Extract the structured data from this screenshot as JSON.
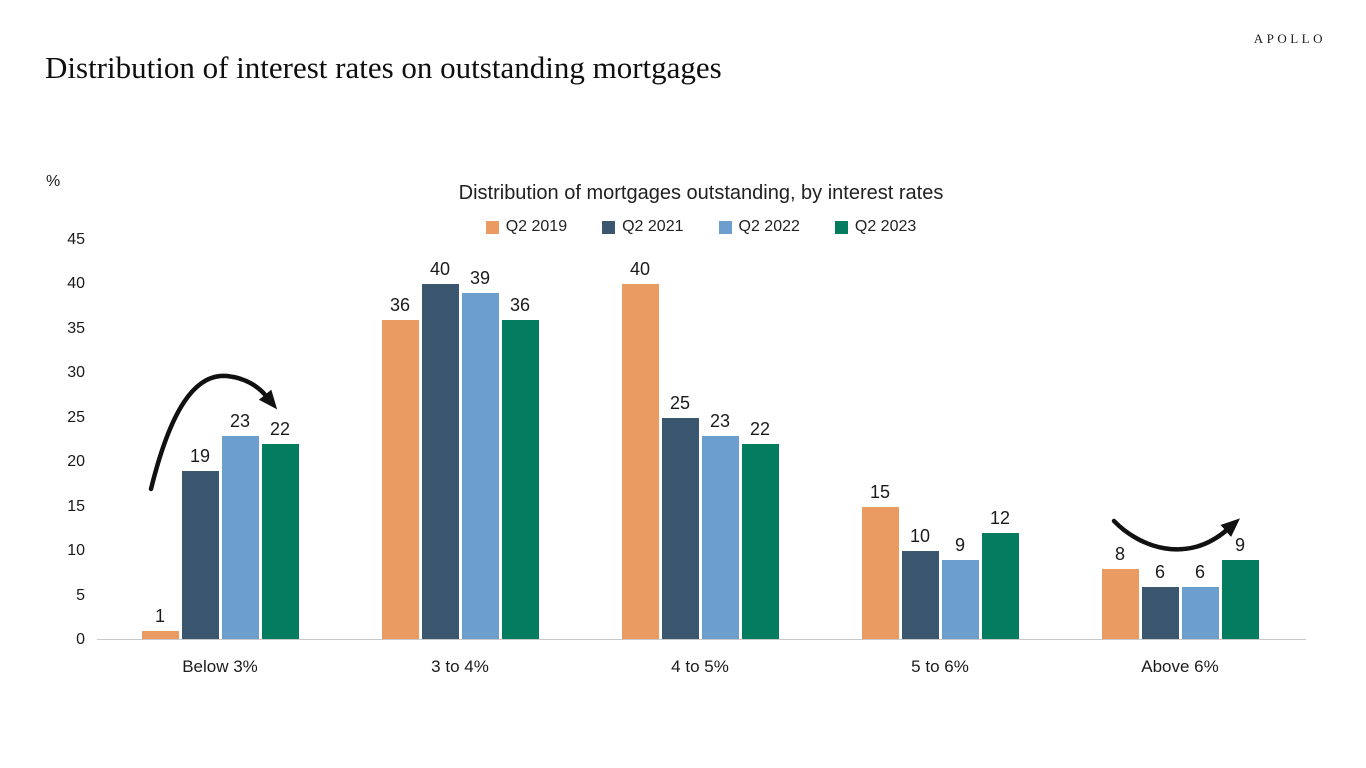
{
  "brand": {
    "logo": "APOLLO"
  },
  "page_title": "Distribution of interest rates on outstanding mortgages",
  "chart_data": {
    "type": "bar",
    "title": "Distribution of mortgages outstanding, by interest rates",
    "ylabel": "%",
    "ylim": [
      0,
      45
    ],
    "yticks": [
      0,
      5,
      10,
      15,
      20,
      25,
      30,
      35,
      40,
      45
    ],
    "grid": false,
    "legend_position": "top-center",
    "categories": [
      "Below 3%",
      "3 to 4%",
      "4 to 5%",
      "5 to 6%",
      "Above 6%"
    ],
    "series": [
      {
        "name": "Q2 2019",
        "color": "#EA9B61",
        "values": [
          1,
          36,
          40,
          15,
          8
        ]
      },
      {
        "name": "Q2 2021",
        "color": "#3B566F",
        "values": [
          19,
          40,
          25,
          10,
          6
        ]
      },
      {
        "name": "Q2 2022",
        "color": "#6D9FCE",
        "values": [
          23,
          39,
          23,
          9,
          6
        ]
      },
      {
        "name": "Q2 2023",
        "color": "#047C60",
        "values": [
          22,
          36,
          22,
          12,
          9
        ]
      }
    ],
    "annotations": [
      {
        "name": "rise-arrow-below-3pct",
        "description": "black arrow arcing up over the Below 3% group pointing down-right",
        "color": "#111111"
      },
      {
        "name": "rebound-arrow-above-6pct",
        "description": "black arrow dipping then curving up over the Above 6% group pointing up-right",
        "color": "#111111"
      }
    ]
  }
}
